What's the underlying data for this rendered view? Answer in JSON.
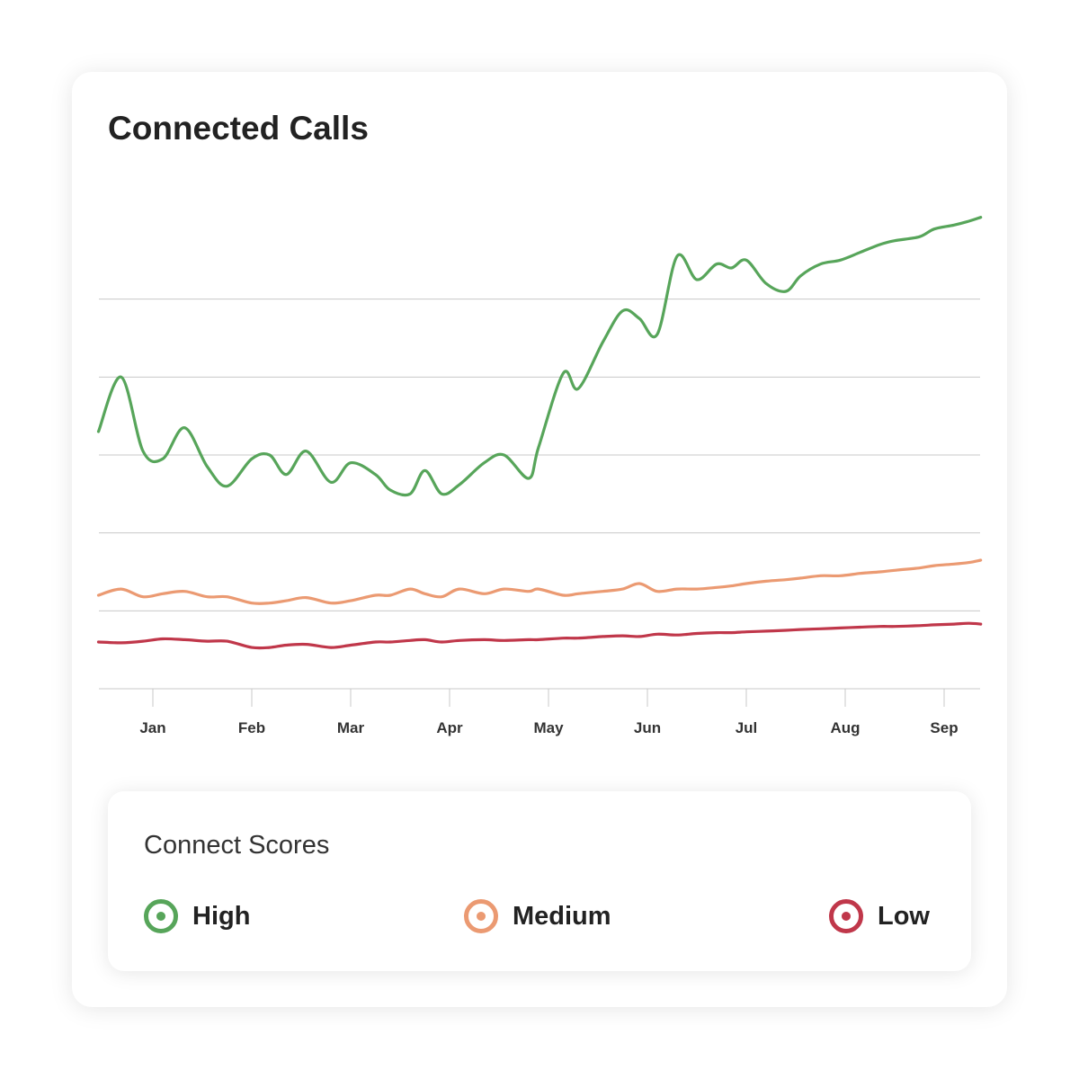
{
  "title": "Connected Calls",
  "legend": {
    "title": "Connect Scores",
    "items": [
      {
        "label": "High",
        "color": "#57a55a"
      },
      {
        "label": "Medium",
        "color": "#eb9a72"
      },
      {
        "label": "Low",
        "color": "#c0374a"
      }
    ]
  },
  "chart_data": {
    "type": "line",
    "title": "Connected Calls",
    "xlabel": "",
    "ylabel": "",
    "categories": [
      "Jan",
      "Feb",
      "Mar",
      "Apr",
      "May",
      "Jun",
      "Jul",
      "Aug",
      "Sep"
    ],
    "x": [
      -0.55,
      -0.32,
      -0.1,
      0.1,
      0.32,
      0.55,
      0.75,
      1.0,
      1.18,
      1.35,
      1.55,
      1.8,
      2.0,
      2.25,
      2.4,
      2.6,
      2.75,
      2.92,
      3.1,
      3.35,
      3.55,
      3.8,
      3.9,
      4.15,
      4.3,
      4.55,
      4.75,
      4.92,
      5.1,
      5.3,
      5.5,
      5.7,
      5.85,
      6.0,
      6.2,
      6.4,
      6.55,
      6.75,
      6.95,
      7.15,
      7.35,
      7.5,
      7.75,
      7.9,
      8.1,
      8.25,
      8.37
    ],
    "series": [
      {
        "name": "High",
        "color": "#57a55a",
        "values": [
          3.3,
          4.0,
          3.05,
          2.95,
          3.35,
          2.85,
          2.6,
          2.95,
          3.0,
          2.75,
          3.05,
          2.65,
          2.9,
          2.75,
          2.55,
          2.5,
          2.8,
          2.5,
          2.62,
          2.9,
          3.0,
          2.7,
          3.1,
          4.05,
          3.85,
          4.45,
          4.85,
          4.75,
          4.55,
          5.55,
          5.25,
          5.45,
          5.4,
          5.5,
          5.2,
          5.1,
          5.3,
          5.45,
          5.5,
          5.6,
          5.7,
          5.75,
          5.8,
          5.9,
          5.95,
          6.0,
          6.05
        ]
      },
      {
        "name": "Medium",
        "color": "#eb9a72",
        "values": [
          1.2,
          1.28,
          1.18,
          1.22,
          1.25,
          1.18,
          1.18,
          1.1,
          1.1,
          1.13,
          1.17,
          1.1,
          1.13,
          1.2,
          1.2,
          1.28,
          1.22,
          1.18,
          1.28,
          1.22,
          1.28,
          1.25,
          1.28,
          1.2,
          1.22,
          1.25,
          1.28,
          1.35,
          1.25,
          1.28,
          1.28,
          1.3,
          1.32,
          1.35,
          1.38,
          1.4,
          1.42,
          1.45,
          1.45,
          1.48,
          1.5,
          1.52,
          1.55,
          1.58,
          1.6,
          1.62,
          1.65
        ]
      },
      {
        "name": "Low",
        "color": "#c0374a",
        "values": [
          0.6,
          0.59,
          0.61,
          0.64,
          0.63,
          0.61,
          0.61,
          0.53,
          0.53,
          0.56,
          0.57,
          0.53,
          0.56,
          0.6,
          0.6,
          0.62,
          0.63,
          0.6,
          0.62,
          0.63,
          0.62,
          0.63,
          0.63,
          0.65,
          0.65,
          0.67,
          0.68,
          0.67,
          0.7,
          0.69,
          0.71,
          0.72,
          0.72,
          0.73,
          0.74,
          0.75,
          0.76,
          0.77,
          0.78,
          0.79,
          0.8,
          0.8,
          0.81,
          0.82,
          0.83,
          0.84,
          0.83
        ]
      }
    ],
    "ylim": [
      0,
      6
    ],
    "y_gridlines": [
      0,
      1,
      2,
      3,
      4,
      5
    ],
    "y_tick_labels_shown": false,
    "grid": true,
    "legend_position": "bottom"
  }
}
